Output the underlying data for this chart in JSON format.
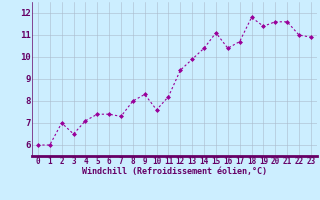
{
  "x": [
    0,
    1,
    2,
    3,
    4,
    5,
    6,
    7,
    8,
    9,
    10,
    11,
    12,
    13,
    14,
    15,
    16,
    17,
    18,
    19,
    20,
    21,
    22,
    23
  ],
  "y": [
    6.0,
    6.0,
    7.0,
    6.5,
    7.1,
    7.4,
    7.4,
    7.3,
    8.0,
    8.3,
    7.6,
    8.2,
    9.4,
    9.9,
    10.4,
    11.1,
    10.4,
    10.7,
    11.8,
    11.4,
    11.6,
    11.6,
    11.0,
    10.9
  ],
  "line_color": "#990099",
  "marker": "D",
  "marker_size": 2.0,
  "bg_color": "#cceeff",
  "grid_color": "#aabbcc",
  "xlabel": "Windchill (Refroidissement éolien,°C)",
  "xlabel_color": "#660066",
  "tick_color": "#660066",
  "ylim": [
    5.5,
    12.5
  ],
  "xlim": [
    -0.5,
    23.5
  ],
  "yticks": [
    6,
    7,
    8,
    9,
    10,
    11,
    12
  ],
  "xticks": [
    0,
    1,
    2,
    3,
    4,
    5,
    6,
    7,
    8,
    9,
    10,
    11,
    12,
    13,
    14,
    15,
    16,
    17,
    18,
    19,
    20,
    21,
    22,
    23
  ],
  "spine_color": "#660066",
  "tick_fontsize": 5.5,
  "xlabel_fontsize": 6.0,
  "ylabel_fontsize": 6.5
}
